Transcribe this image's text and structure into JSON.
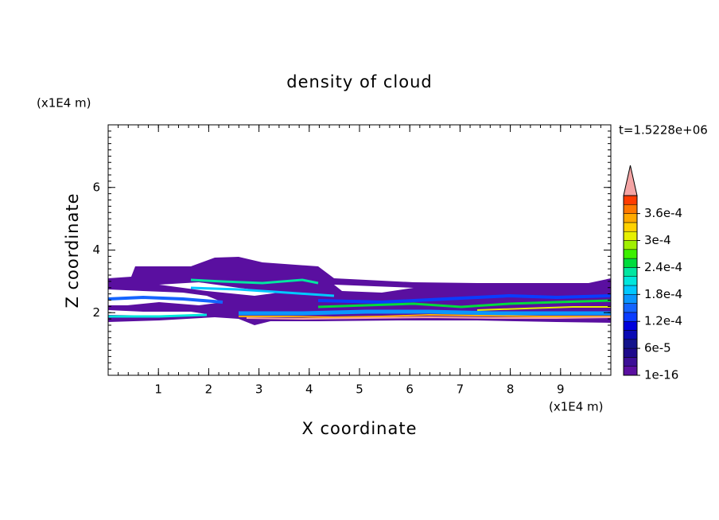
{
  "chart_data": {
    "type": "contour",
    "title": "density of cloud",
    "x_label": "X coordinate",
    "y_label": "Z coordinate",
    "x_unit": "(x1E4 m)",
    "y_unit": "(x1E4 m)",
    "time_label": "t=1.5228e+06",
    "xlim": [
      0,
      10
    ],
    "ylim": [
      0,
      8
    ],
    "xticks": [
      1,
      2,
      3,
      4,
      5,
      6,
      7,
      8,
      9
    ],
    "yticks": [
      2,
      4,
      6
    ],
    "colorbar": {
      "lim": [
        1e-16,
        0.0004
      ],
      "colors": [
        "#5a0fa0",
        "#3c0f96",
        "#1e0a8c",
        "#14148c",
        "#0a0ab4",
        "#0000dc",
        "#0a3cff",
        "#1464ff",
        "#0a96ff",
        "#00c8ff",
        "#00e6dc",
        "#00e6a0",
        "#00dc3c",
        "#3cf000",
        "#a0f000",
        "#e6f000",
        "#ffd200",
        "#ffaa00",
        "#ff7800",
        "#ff3c00"
      ],
      "extend_color": "#f4a4a4",
      "ticks": [
        {
          "value": 1e-16,
          "label": "1e-16"
        },
        {
          "value": 6e-05,
          "label": "6e-5"
        },
        {
          "value": 0.00012,
          "label": "1.2e-4"
        },
        {
          "value": 0.00018,
          "label": "1.8e-4"
        },
        {
          "value": 0.00024,
          "label": "2.4e-4"
        },
        {
          "value": 0.0003,
          "label": "3e-4"
        },
        {
          "value": 0.00036,
          "label": "3.6e-4"
        }
      ]
    }
  }
}
